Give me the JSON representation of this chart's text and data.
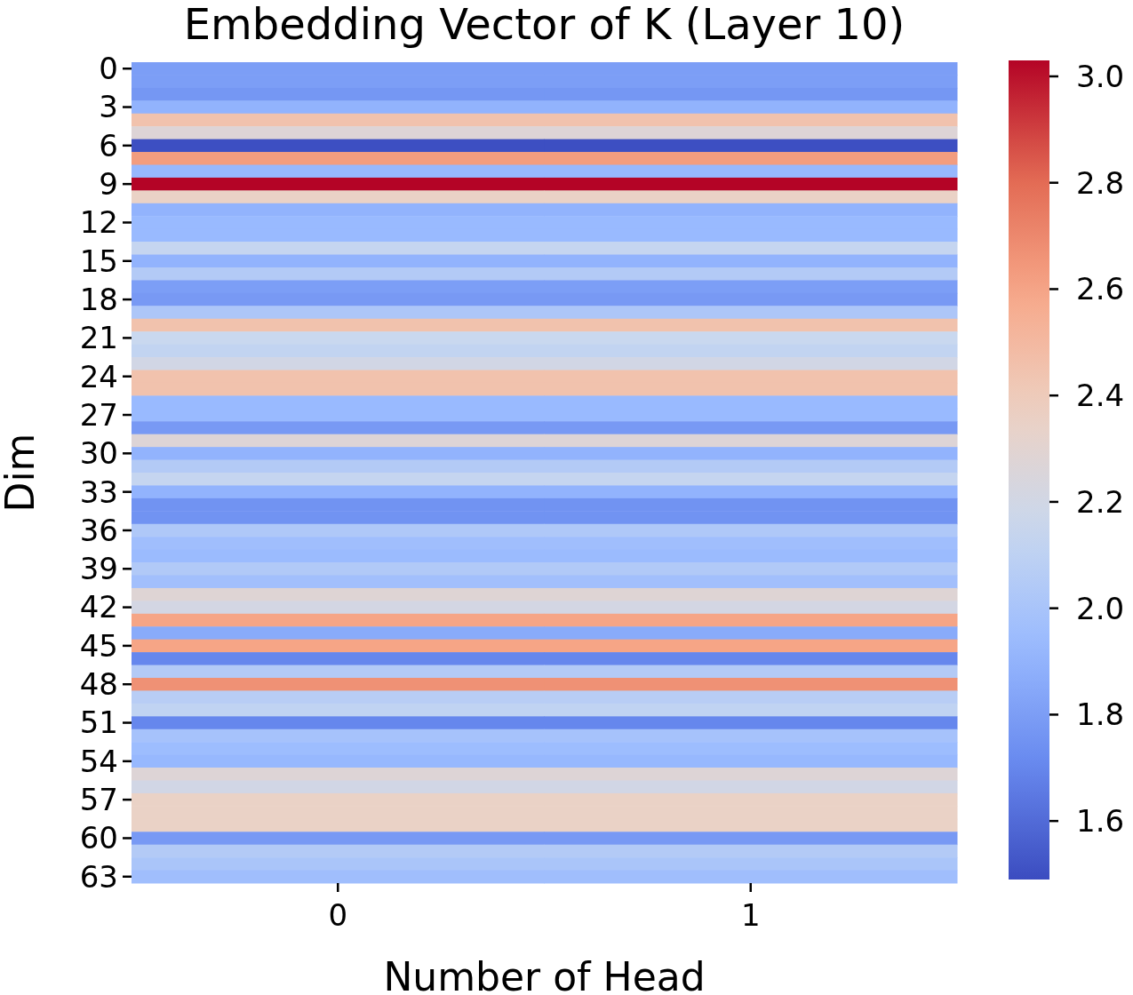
{
  "chart_data": {
    "type": "heatmap",
    "title": "Embedding Vector of K (Layer 10)",
    "xlabel": "Number of Head",
    "ylabel": "Dim",
    "categories": [
      "0",
      "1"
    ],
    "y_categories": [
      "0",
      null,
      null,
      "3",
      null,
      null,
      "6",
      null,
      null,
      "9",
      null,
      null,
      "12",
      null,
      null,
      "15",
      null,
      null,
      "18",
      null,
      null,
      "21",
      null,
      null,
      "24",
      null,
      null,
      "27",
      null,
      null,
      "30",
      null,
      null,
      "33",
      null,
      null,
      "36",
      null,
      null,
      "39",
      null,
      null,
      "42",
      null,
      null,
      "45",
      null,
      null,
      "48",
      null,
      null,
      "51",
      null,
      null,
      "54",
      null,
      null,
      "57",
      null,
      null,
      "60",
      null,
      null,
      "63"
    ],
    "cells": [
      [
        1.8,
        1.8
      ],
      [
        1.8,
        1.8
      ],
      [
        1.77,
        1.77
      ],
      [
        1.9,
        1.9
      ],
      [
        2.45,
        2.45
      ],
      [
        2.27,
        2.27
      ],
      [
        1.5,
        1.5
      ],
      [
        2.63,
        2.63
      ],
      [
        1.92,
        1.92
      ],
      [
        3.03,
        3.03
      ],
      [
        2.35,
        2.35
      ],
      [
        1.9,
        1.9
      ],
      [
        1.93,
        1.93
      ],
      [
        1.93,
        1.93
      ],
      [
        2.13,
        2.13
      ],
      [
        1.9,
        1.9
      ],
      [
        2.05,
        2.05
      ],
      [
        1.8,
        1.8
      ],
      [
        1.78,
        1.78
      ],
      [
        2.02,
        2.02
      ],
      [
        2.45,
        2.45
      ],
      [
        2.15,
        2.15
      ],
      [
        2.12,
        2.12
      ],
      [
        2.2,
        2.2
      ],
      [
        2.45,
        2.45
      ],
      [
        2.45,
        2.45
      ],
      [
        1.93,
        1.93
      ],
      [
        1.93,
        1.93
      ],
      [
        1.78,
        1.78
      ],
      [
        2.27,
        2.27
      ],
      [
        1.9,
        1.9
      ],
      [
        2.05,
        2.05
      ],
      [
        2.13,
        2.13
      ],
      [
        1.9,
        1.9
      ],
      [
        1.75,
        1.75
      ],
      [
        1.75,
        1.75
      ],
      [
        2.03,
        2.03
      ],
      [
        1.96,
        1.96
      ],
      [
        1.94,
        1.94
      ],
      [
        2.04,
        2.04
      ],
      [
        1.97,
        1.97
      ],
      [
        2.28,
        2.28
      ],
      [
        2.21,
        2.21
      ],
      [
        2.6,
        2.6
      ],
      [
        1.86,
        1.86
      ],
      [
        2.6,
        2.6
      ],
      [
        1.7,
        1.7
      ],
      [
        2.05,
        2.05
      ],
      [
        2.67,
        2.67
      ],
      [
        2.07,
        2.07
      ],
      [
        2.11,
        2.11
      ],
      [
        1.7,
        1.7
      ],
      [
        1.99,
        1.99
      ],
      [
        1.95,
        1.95
      ],
      [
        1.92,
        1.92
      ],
      [
        2.27,
        2.27
      ],
      [
        2.2,
        2.2
      ],
      [
        2.35,
        2.35
      ],
      [
        2.35,
        2.35
      ],
      [
        2.35,
        2.35
      ],
      [
        1.78,
        1.78
      ],
      [
        2.05,
        2.05
      ],
      [
        2.01,
        2.01
      ],
      [
        1.96,
        1.96
      ]
    ],
    "clim": [
      1.49,
      3.03
    ],
    "cticks": [
      1.6,
      1.8,
      {
        "value": 2,
        "label": "2.0"
      },
      2.2,
      2.4,
      2.6,
      2.8,
      {
        "value": 3,
        "label": "3.0"
      }
    ]
  }
}
